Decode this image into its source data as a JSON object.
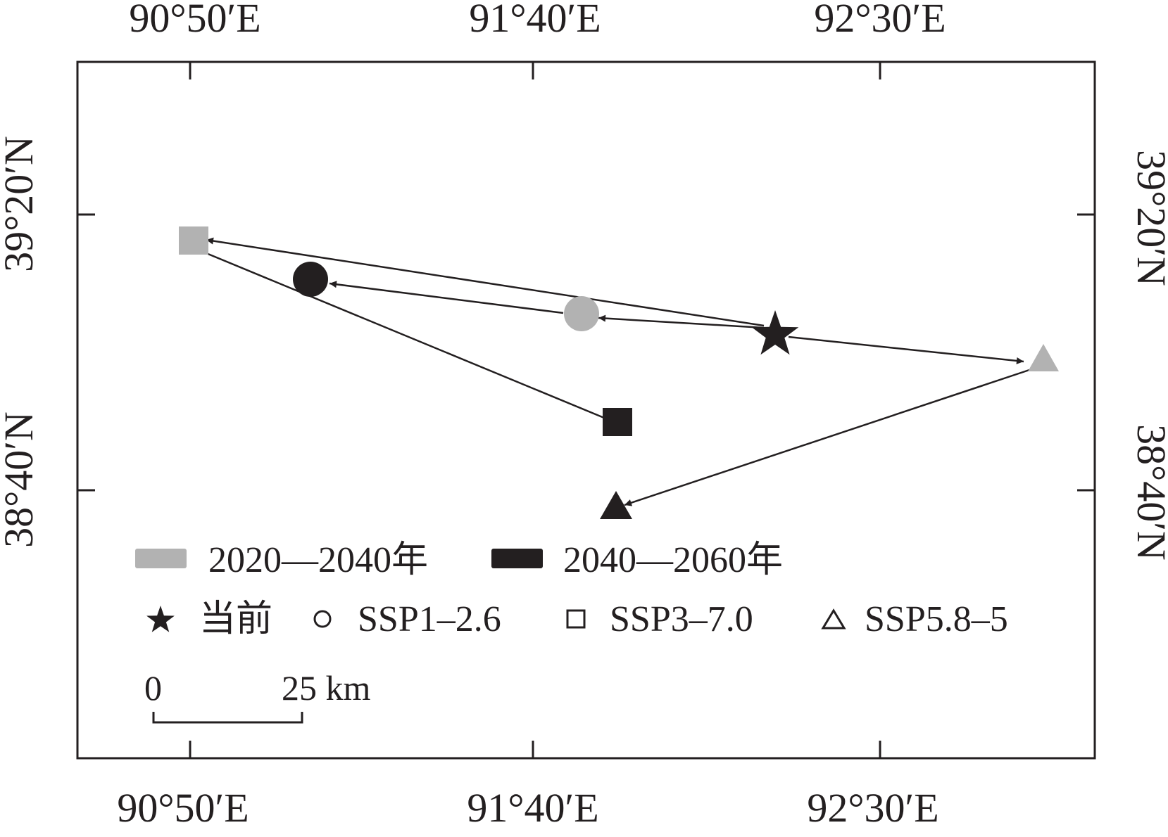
{
  "map": {
    "ticks": {
      "lon": [
        "90°50′E",
        "91°40′E",
        "92°30′E"
      ],
      "lat": [
        "39°20′N",
        "38°40′N"
      ]
    },
    "legend": {
      "periods": [
        {
          "label": "2020—2040年",
          "color": "#b2b2b2"
        },
        {
          "label": "2040—2060年",
          "color": "#231f20"
        }
      ],
      "scenarios": [
        {
          "label": "当前",
          "icon": "star-icon"
        },
        {
          "label": "SSP1–2.6",
          "icon": "circle-icon"
        },
        {
          "label": "SSP3–7.0",
          "icon": "square-icon"
        },
        {
          "label": "SSP5.8–5",
          "icon": "triangle-icon"
        }
      ]
    },
    "scale_bar": {
      "start_label": "0",
      "end_label": "25 km"
    },
    "colors": {
      "frame": "#231f20",
      "period_2020_2040": "#b2b2b2",
      "period_2040_2060": "#231f20"
    }
  }
}
